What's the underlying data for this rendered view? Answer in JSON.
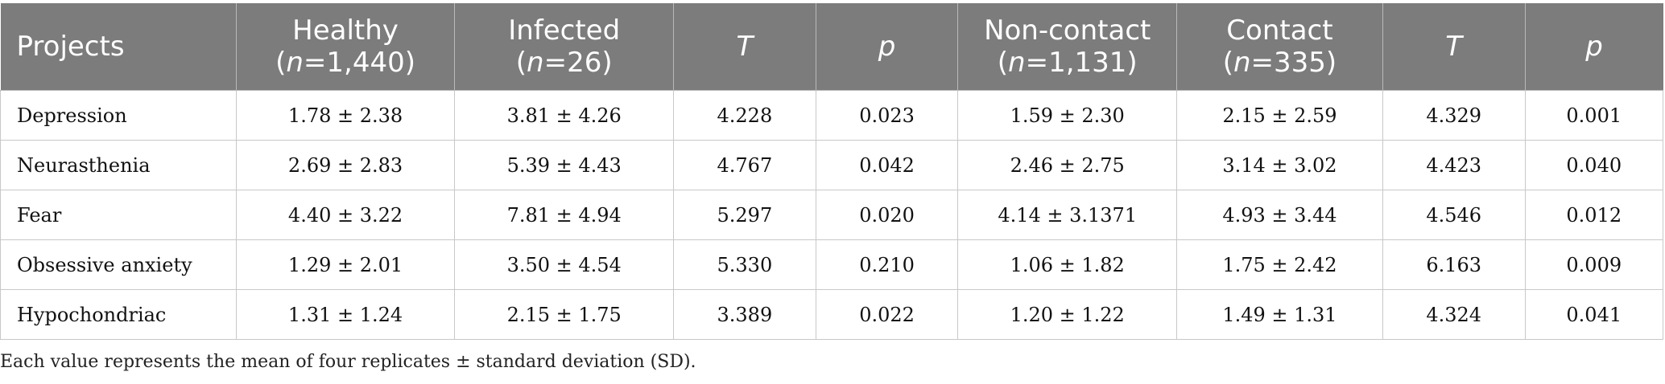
{
  "header": {
    "projects": "Projects",
    "healthy": "Healthy",
    "healthy_n_prefix": "(",
    "healthy_n_var": "n",
    "healthy_n_val": "=1,440)",
    "infected": "Infected",
    "infected_n_prefix": "(",
    "infected_n_var": "n",
    "infected_n_val": "=26)",
    "t1": "T",
    "p1": "p",
    "noncontact": "Non-contact",
    "noncontact_n_prefix": "(",
    "noncontact_n_var": "n",
    "noncontact_n_val": "=1,131)",
    "contact": "Contact",
    "contact_n_prefix": "(",
    "contact_n_var": "n",
    "contact_n_val": "=335)",
    "t2": "T",
    "p2": "p"
  },
  "rows": [
    {
      "project": "Depression",
      "healthy": "1.78 ± 2.38",
      "infected": "3.81 ± 4.26",
      "t1": "4.228",
      "p1": "0.023",
      "noncontact": "1.59 ± 2.30",
      "contact": "2.15 ± 2.59",
      "t2": "4.329",
      "p2": "0.001"
    },
    {
      "project": "Neurasthenia",
      "healthy": "2.69 ± 2.83",
      "infected": "5.39 ± 4.43",
      "t1": "4.767",
      "p1": "0.042",
      "noncontact": "2.46 ± 2.75",
      "contact": "3.14 ± 3.02",
      "t2": "4.423",
      "p2": "0.040"
    },
    {
      "project": "Fear",
      "healthy": "4.40 ± 3.22",
      "infected": "7.81 ± 4.94",
      "t1": "5.297",
      "p1": "0.020",
      "noncontact": "4.14 ± 3.1371",
      "contact": "4.93 ± 3.44",
      "t2": "4.546",
      "p2": "0.012"
    },
    {
      "project": "Obsessive anxiety",
      "healthy": "1.29 ± 2.01",
      "infected": "3.50 ± 4.54",
      "t1": "5.330",
      "p1": "0.210",
      "noncontact": "1.06 ± 1.82",
      "contact": "1.75 ± 2.42",
      "t2": "6.163",
      "p2": "0.009"
    },
    {
      "project": "Hypochondriac",
      "healthy": "1.31 ± 1.24",
      "infected": "2.15 ± 1.75",
      "t1": "3.389",
      "p1": "0.022",
      "noncontact": "1.20 ± 1.22",
      "contact": "1.49 ± 1.31",
      "t2": "4.324",
      "p2": "0.041"
    }
  ],
  "footnote": "Each value represents the mean of four replicates ± standard deviation (SD).",
  "colors": {
    "header_bg": "#7b7c7b",
    "header_text": "#ffffff",
    "grid": "#c8c8c8"
  }
}
